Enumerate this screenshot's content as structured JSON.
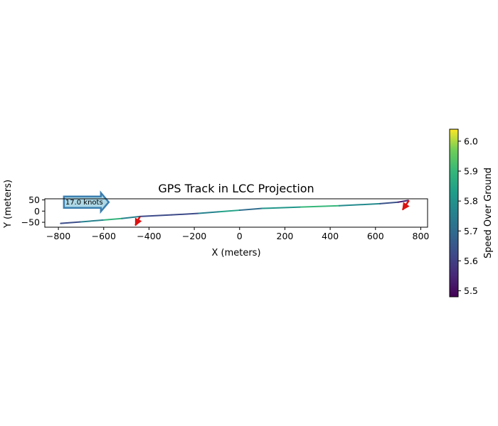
{
  "chart_data": {
    "type": "line",
    "title": "GPS Track in LCC Projection",
    "xlabel": "X (meters)",
    "ylabel": "Y (meters)",
    "xlim": [
      -860,
      830
    ],
    "ylim": [
      -72,
      55
    ],
    "xticks": [
      -800,
      -600,
      -400,
      -200,
      0,
      200,
      400,
      600,
      800
    ],
    "yticks": [
      50,
      0,
      -50
    ],
    "aspect": "equal",
    "grid": false,
    "track": {
      "x": [
        -790,
        -700,
        -600,
        -520,
        -440,
        -300,
        -180,
        -90,
        0,
        100,
        270,
        440,
        620,
        700,
        745
      ],
      "y": [
        -55,
        -48,
        -40,
        -33,
        -24,
        -17,
        -10,
        -3,
        4,
        12,
        18,
        24,
        33,
        40,
        48
      ],
      "speed": [
        5.62,
        5.64,
        5.88,
        5.9,
        5.62,
        5.63,
        5.62,
        5.9,
        5.78,
        5.62,
        6.0,
        5.8,
        5.76,
        5.52,
        5.55
      ]
    },
    "heading_arrows": [
      {
        "x": -440,
        "y": -24,
        "dx": -20,
        "dy": -40,
        "color": "#dd1111"
      },
      {
        "x": 748,
        "y": 48,
        "dx": -28,
        "dy": -42,
        "color": "#dd1111"
      }
    ],
    "annotation": {
      "text": "17.0 knots",
      "x": -760,
      "y": 40
    },
    "colorbar": {
      "label": "Speed Over Ground",
      "min": 5.48,
      "max": 6.04,
      "ticks": [
        5.5,
        5.6,
        5.7,
        5.8,
        5.9,
        6.0
      ],
      "tick_labels": [
        "5.5",
        "5.6",
        "5.7",
        "5.8",
        "5.9",
        "6.0"
      ],
      "colormap": "viridis"
    }
  }
}
